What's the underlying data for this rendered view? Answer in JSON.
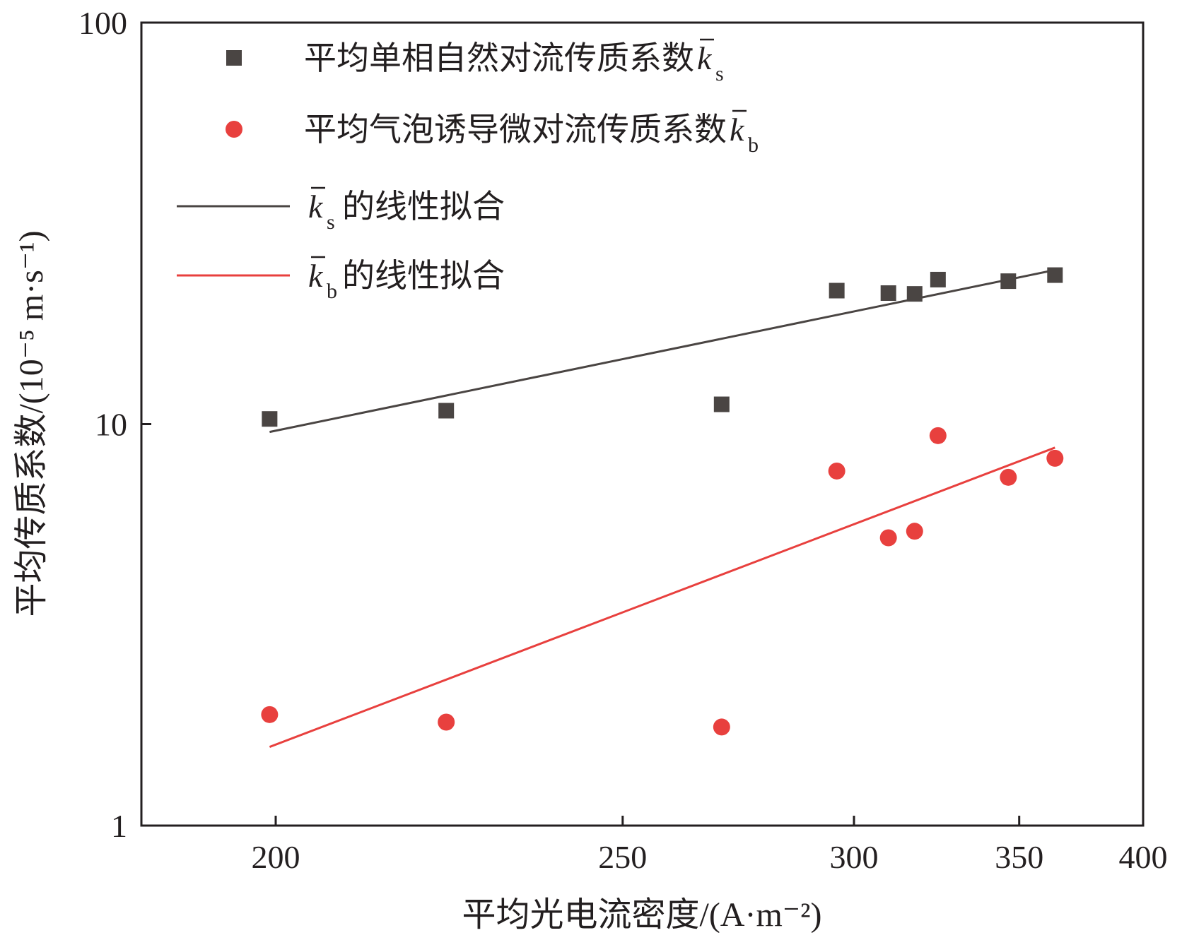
{
  "chart_data": {
    "type": "scatter",
    "xlabel": "平均光电流密度/(A·m⁻²)",
    "ylabel": "平均传质系数/(10⁻⁵ m·s⁻¹)",
    "x_scale": "reciprocal",
    "y_scale": "log",
    "xlim": [
      200,
      400
    ],
    "ylim": [
      1,
      100
    ],
    "x_ticks": [
      200,
      250,
      300,
      350,
      400
    ],
    "y_ticks": [
      1,
      10,
      100
    ],
    "grid": false,
    "legend_position": "top-left",
    "series": [
      {
        "name": "平均单相自然对流传质系数k̄s",
        "kind": "scatter",
        "marker": "square",
        "color": "#4a4543",
        "x": [
          199.3,
          221.8,
          269.2,
          295.6,
          309.2,
          316.6,
          323.5,
          346.2,
          363.1
        ],
        "y": [
          10.3,
          10.8,
          11.2,
          21.5,
          21.2,
          21.1,
          22.9,
          22.7,
          23.5
        ]
      },
      {
        "name": "平均气泡诱导微对流传质系数k̄b",
        "kind": "scatter",
        "marker": "circle",
        "color": "#e8403e",
        "x": [
          199.3,
          221.8,
          269.2,
          295.6,
          309.2,
          316.6,
          323.5,
          346.2,
          363.1
        ],
        "y": [
          1.89,
          1.81,
          1.76,
          7.64,
          5.21,
          5.41,
          9.36,
          7.37,
          8.22
        ]
      },
      {
        "name": "k̄s的线性拟合",
        "kind": "line",
        "color": "#4a4543",
        "x": [
          199.3,
          363.1
        ],
        "y": [
          9.56,
          24.2
        ]
      },
      {
        "name": "k̄b的线性拟合",
        "kind": "line",
        "color": "#e8403e",
        "x": [
          199.3,
          363.1
        ],
        "y": [
          1.57,
          8.74
        ]
      }
    ],
    "legend": {
      "entries": [
        {
          "main": "平均单相自然对流传质系数",
          "k": "k",
          "sub": "s",
          "suffix": ""
        },
        {
          "main": "平均气泡诱导微对流传质系数",
          "k": "k",
          "sub": "b",
          "suffix": ""
        },
        {
          "main": "",
          "k": "k",
          "sub": "s",
          "suffix": "的线性拟合"
        },
        {
          "main": "",
          "k": "k",
          "sub": "b",
          "suffix": "的线性拟合"
        }
      ]
    }
  }
}
